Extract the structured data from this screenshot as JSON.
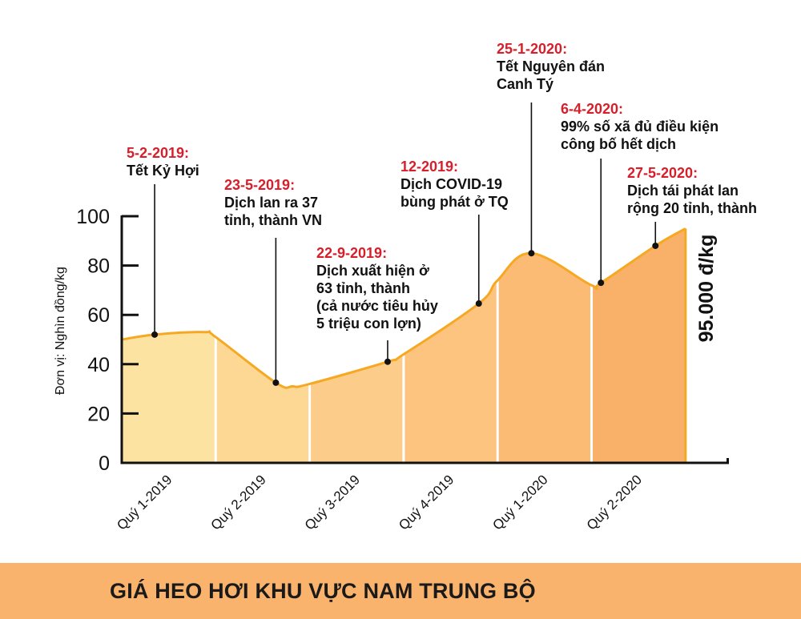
{
  "chart_data": {
    "type": "area",
    "title": "GIÁ HEO HƠI KHU VỰC NAM TRUNG BỘ",
    "ylabel": "Đơn vị: Nghìn đồng/kg",
    "xlabel": "",
    "ylim": [
      0,
      100
    ],
    "yticks": [
      0,
      20,
      40,
      60,
      80,
      100
    ],
    "categories": [
      "Quý 1-2019",
      "Quý 2-2019",
      "Quý 3-2019",
      "Quý 4-2019",
      "Quý 1-2020",
      "Quý 2-2020"
    ],
    "x_unit": "quarters since start of 2019",
    "series": [
      {
        "name": "Giá heo hơi",
        "x": [
          0,
          0.35,
          0.88,
          1.0,
          1.64,
          1.82,
          2.0,
          2.83,
          3.0,
          3.8,
          4.0,
          4.36,
          5.0,
          5.1,
          5.68,
          6.0
        ],
        "values": [
          50,
          52,
          53,
          51,
          32.5,
          31,
          32,
          41,
          44,
          64.6,
          74,
          85,
          72,
          73,
          88,
          95
        ]
      }
    ],
    "end_label": "95.000 đ/kg",
    "annotations": [
      {
        "date": "5-2-2019:",
        "lines": [
          "Tết Kỷ Hợi"
        ],
        "x": 0.35,
        "value": 52
      },
      {
        "date": "23-5-2019:",
        "lines": [
          "Dịch lan ra 37",
          "tỉnh, thành VN"
        ],
        "x": 1.64,
        "value": 32.5
      },
      {
        "date": "22-9-2019:",
        "lines": [
          "Dịch xuất hiện ở",
          "63 tỉnh, thành",
          "(cả nước tiêu hủy",
          "5 triệu con lợn)"
        ],
        "x": 2.83,
        "value": 41
      },
      {
        "date": "12-2019:",
        "lines": [
          "Dịch COVID-19",
          "bùng phát ở TQ"
        ],
        "x": 3.8,
        "value": 64.6
      },
      {
        "date": "25-1-2020:",
        "lines": [
          "Tết Nguyên đán",
          "Canh Tý"
        ],
        "x": 4.36,
        "value": 85
      },
      {
        "date": "6-4-2020:",
        "lines": [
          "99% số xã đủ điều kiện",
          "công bố hết dịch"
        ],
        "x": 5.1,
        "value": 73
      },
      {
        "date": "27-5-2020:",
        "lines": [
          "Dịch tái phát lan",
          "rộng 20 tỉnh, thành"
        ],
        "x": 5.68,
        "value": 88
      }
    ],
    "colors": {
      "line": "#f7a823",
      "date": "#d71f2b",
      "quarters": [
        "#fde3a2",
        "#fdd895",
        "#fccd8a",
        "#fcc47f",
        "#fbbb75",
        "#f9b068"
      ]
    }
  },
  "footer": {
    "title": "GIÁ HEO HƠI KHU VỰC NAM TRUNG BỘ"
  }
}
